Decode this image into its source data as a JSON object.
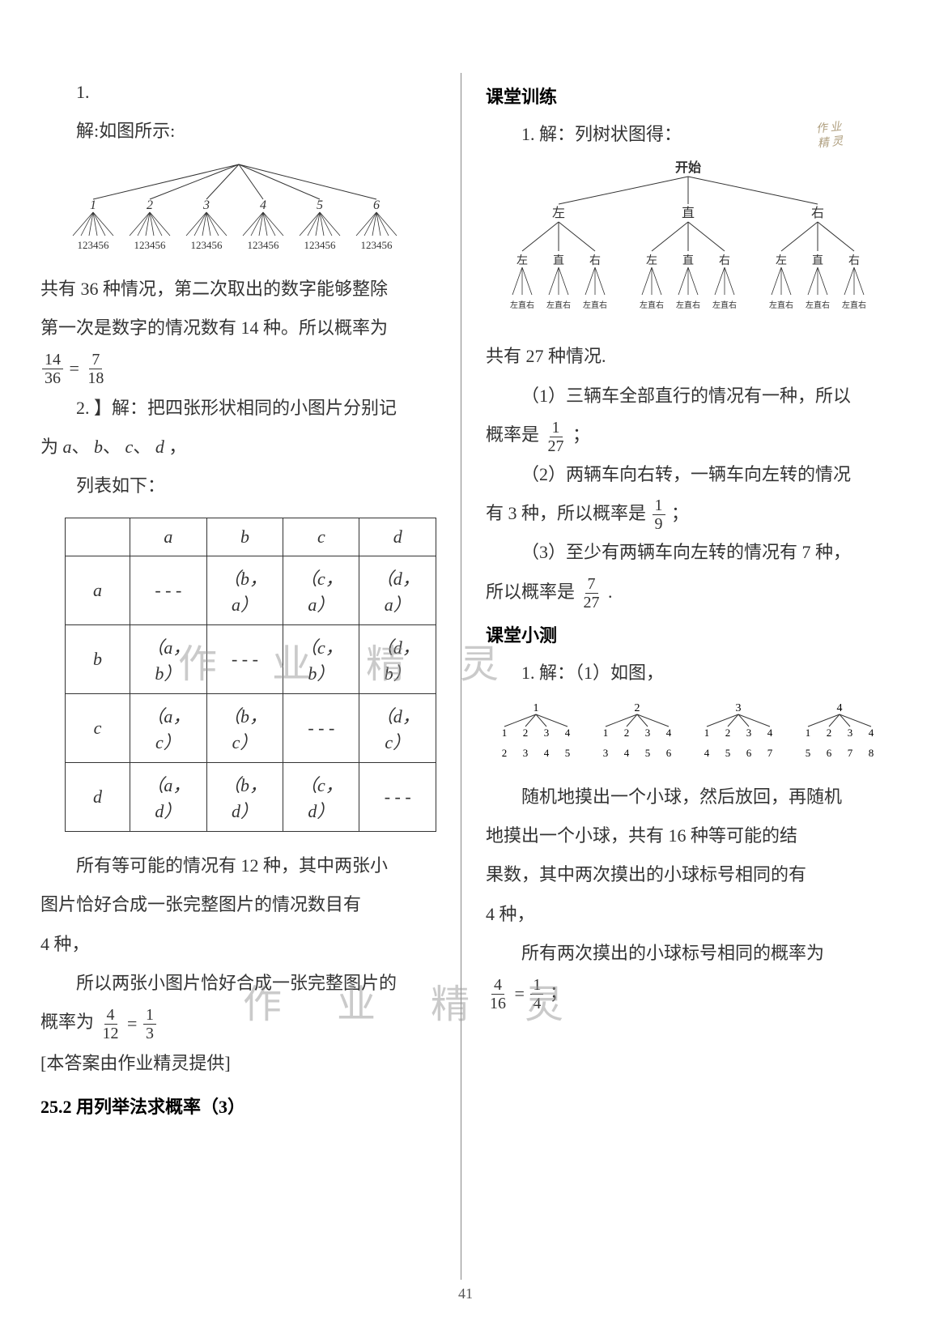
{
  "page_number": "41",
  "watermarks": {
    "wm1": "作 业 精 灵",
    "wm2": "作 业 精 灵"
  },
  "left": {
    "q1_num": "1.",
    "q1_l1": "解:如图所示:",
    "tree1": {
      "root_branches": [
        1,
        2,
        3,
        4,
        5,
        6
      ],
      "leaf_label": "123456",
      "line_color": "#333333"
    },
    "q1_l2": "共有 36 种情况，第二次取出的数字能够整除",
    "q1_l3": "第一次是数字的情况数有 14 种。所以概率为",
    "q1_frac_n1": "14",
    "q1_frac_d1": "36",
    "q1_frac_n2": "7",
    "q1_frac_d2": "18",
    "q2_l1": "2. 】解：把四张形状相同的小图片分别记",
    "q2_l2_prefix": "为 ",
    "q2_labels": [
      "a",
      "b",
      "c",
      "d"
    ],
    "q2_l2_suffix": "，",
    "q2_l3": "列表如下：",
    "table": {
      "headers": [
        "",
        "a",
        "b",
        "c",
        "d"
      ],
      "rows": [
        [
          "a",
          "- - -",
          "（b，a）",
          "（c，a）",
          "（d，a）"
        ],
        [
          "b",
          "（a，b）",
          "- - -",
          "（c，b）",
          "（d，b）"
        ],
        [
          "c",
          "（a，c）",
          "（b，c）",
          "- - -",
          "（d，c）"
        ],
        [
          "d",
          "（a，d）",
          "（b，d）",
          "（c，d）",
          "- - -"
        ]
      ],
      "border_color": "#333333"
    },
    "q2_l4": "所有等可能的情况有 12 种，其中两张小",
    "q2_l5": "图片恰好合成一张完整图片的情况数目有",
    "q2_l6": "4 种，",
    "q2_l7": "所以两张小图片恰好合成一张完整图片的",
    "q2_l8_prefix": "概率为",
    "q2_frac_n1": "4",
    "q2_frac_d1": "12",
    "q2_frac_n2": "1",
    "q2_frac_d2": "3",
    "provider": "[本答案由作业精灵提供]",
    "section_title": "25.2 用列举法求概率（3）"
  },
  "right": {
    "sec1": "课堂训练",
    "stamp_l1": "作 业",
    "stamp_l2": "精 灵",
    "q1_l1": "1. 解：列树状图得：",
    "tree2": {
      "root": "开始",
      "level1": [
        "左",
        "直",
        "右"
      ],
      "level2": [
        "左",
        "直",
        "右"
      ],
      "level3_tokens": "左直右",
      "line_color": "#333333",
      "text_color": "#333333"
    },
    "q1_l2": "共有 27 种情况.",
    "q1_p1": "（1）三辆车全部直行的情况有一种，所以",
    "q1_p1b_prefix": "概率是",
    "fr1_n": "1",
    "fr1_d": "27",
    "q1_p1b_suffix": "；",
    "q1_p2": "（2）两辆车向右转，一辆车向左转的情况",
    "q1_p2b_prefix": "有 3 种，所以概率是",
    "fr2_n": "1",
    "fr2_d": "9",
    "q1_p2b_suffix": "；",
    "q1_p3": "（3）至少有两辆车向左转的情况有 7 种，",
    "q1_p3b_prefix": "所以概率是 ",
    "fr3_n": "7",
    "fr3_d": "27",
    "q1_p3b_suffix": " .",
    "sec2": "课堂小测",
    "q2_l1": "1. 解：（1）如图，",
    "mini_trees": [
      {
        "root": "1",
        "mid": [
          "1",
          "2",
          "3",
          "4"
        ],
        "leaf": [
          "2",
          "3",
          "4",
          "5"
        ]
      },
      {
        "root": "2",
        "mid": [
          "1",
          "2",
          "3",
          "4"
        ],
        "leaf": [
          "3",
          "4",
          "5",
          "6"
        ]
      },
      {
        "root": "3",
        "mid": [
          "1",
          "2",
          "3",
          "4"
        ],
        "leaf": [
          "4",
          "5",
          "6",
          "7"
        ]
      },
      {
        "root": "4",
        "mid": [
          "1",
          "2",
          "3",
          "4"
        ],
        "leaf": [
          "5",
          "6",
          "7",
          "8"
        ]
      }
    ],
    "q2_l2": "随机地摸出一个小球，然后放回，再随机",
    "q2_l3": "地摸出一个小球，共有 16 种等可能的结",
    "q2_l4": "果数，其中两次摸出的小球标号相同的有",
    "q2_l5": "4 种，",
    "q2_l6": "所有两次摸出的小球标号相同的概率为",
    "fr4_n": "4",
    "fr4_d": "16",
    "fr5_n": "1",
    "fr5_d": "4",
    "q2_l7_suffix": "；"
  }
}
